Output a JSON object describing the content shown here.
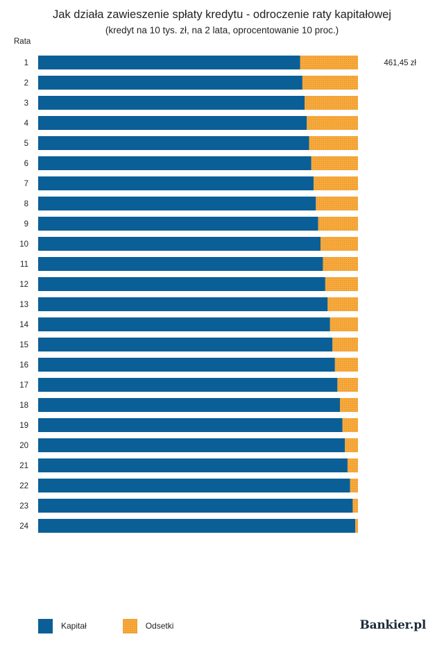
{
  "colors": {
    "kapital": "#0b5f97",
    "odsetki": "#f7a93b",
    "odsetki_dot": "#d9892a"
  },
  "legend": {
    "kapital_label": "Kapitał",
    "odsetki_label": "Odsetki"
  },
  "logo": {
    "text": "Bankier.pl"
  },
  "chart_data": {
    "type": "bar",
    "orientation": "horizontal",
    "stacked": true,
    "title": "Jak działa zawieszenie spłaty kredytu - odroczenie raty kapitałowej",
    "subtitle": "(kredyt na 10 tys. zł, na 2 lata, oprocentowanie 10 proc.)",
    "ylabel": "Rata",
    "categories": [
      "1",
      "2",
      "3",
      "4",
      "5",
      "6",
      "7",
      "8",
      "9",
      "10",
      "11",
      "12",
      "13",
      "14",
      "15",
      "16",
      "17",
      "18",
      "19",
      "20",
      "21",
      "22",
      "23",
      "24"
    ],
    "series": [
      {
        "name": "Kapitał",
        "values": [
          378.12,
          381.27,
          384.45,
          387.65,
          390.88,
          394.14,
          397.42,
          400.73,
          404.07,
          407.44,
          410.84,
          414.26,
          417.71,
          421.19,
          424.7,
          428.24,
          431.81,
          435.41,
          439.04,
          442.7,
          446.39,
          450.11,
          453.86,
          457.64
        ]
      },
      {
        "name": "Odsetki",
        "values": [
          83.33,
          80.18,
          77.0,
          73.8,
          70.57,
          67.31,
          64.03,
          60.72,
          57.38,
          54.01,
          50.61,
          47.19,
          43.74,
          40.26,
          36.75,
          33.21,
          29.64,
          26.04,
          22.41,
          18.75,
          15.06,
          11.34,
          7.59,
          3.81
        ]
      }
    ],
    "annotation": {
      "category": "1",
      "text": "461,45 zł"
    },
    "xlim": [
      0,
      461.45
    ],
    "grid": false,
    "legend_position": "bottom-left"
  }
}
